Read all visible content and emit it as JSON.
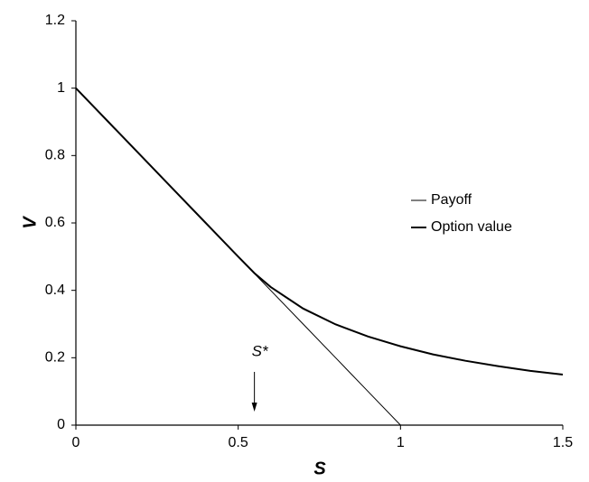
{
  "chart_data": {
    "type": "line",
    "x": [
      0,
      0.1,
      0.2,
      0.3,
      0.4,
      0.5,
      0.55,
      0.6,
      0.7,
      0.8,
      0.9,
      1,
      1.1,
      1.2,
      1.3,
      1.4,
      1.5
    ],
    "series": [
      {
        "name": "Payoff",
        "color": "#000000",
        "width": 1,
        "values": [
          1,
          0.9,
          0.8,
          0.7,
          0.6,
          0.5,
          0.45,
          0.4,
          0.3,
          0.2,
          0.1,
          0,
          0,
          0,
          0,
          0,
          0
        ]
      },
      {
        "name": "Option value",
        "color": "#000000",
        "width": 2,
        "values": [
          1,
          0.9,
          0.8,
          0.7,
          0.6,
          0.5,
          0.451,
          0.41,
          0.346,
          0.299,
          0.263,
          0.234,
          0.21,
          0.191,
          0.175,
          0.161,
          0.15
        ]
      }
    ],
    "xlabel": "S",
    "ylabel": "V",
    "xlim": [
      0,
      1.5
    ],
    "ylim": [
      0,
      1.2
    ],
    "xticks": [
      0,
      0.5,
      1,
      1.5
    ],
    "yticks": [
      0,
      0.2,
      0.4,
      0.6,
      0.8,
      1,
      1.2
    ],
    "annotation": {
      "text": "S*",
      "x": 0.55
    },
    "legend": "right"
  }
}
